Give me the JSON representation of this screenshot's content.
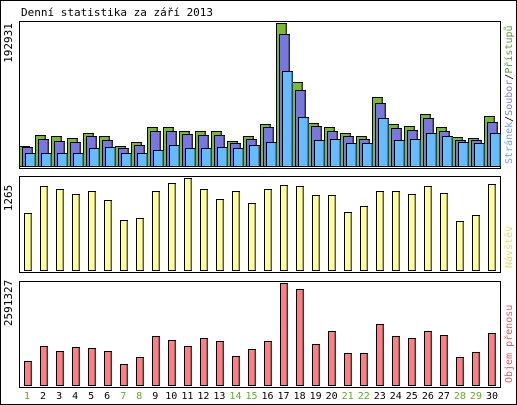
{
  "chart_data": {
    "type": "bar",
    "title": "Denní statistika za září 2013",
    "categories": [
      "1",
      "2",
      "3",
      "4",
      "5",
      "6",
      "7",
      "8",
      "9",
      "10",
      "11",
      "12",
      "13",
      "14",
      "15",
      "16",
      "17",
      "18",
      "19",
      "20",
      "21",
      "22",
      "23",
      "24",
      "25",
      "26",
      "27",
      "28",
      "29",
      "30"
    ],
    "weekend_days": [
      "1",
      "7",
      "8",
      "14",
      "15",
      "21",
      "22",
      "28",
      "29"
    ],
    "panels": [
      {
        "id": "hits",
        "y_tick_label": "192931",
        "y_tick_value": 192931,
        "ylim": [
          0,
          192931
        ],
        "legend": [
          {
            "text": "Stránek",
            "color": "#70a0f0"
          },
          {
            "text": "/",
            "color": "#000000"
          },
          {
            "text": "Soubor",
            "color": "#8080e0"
          },
          {
            "text": "/",
            "color": "#000000"
          },
          {
            "text": "Přístupů",
            "color": "#60a030"
          }
        ],
        "series": [
          {
            "name": "Přístupů",
            "color": "#77bb33",
            "values": [
              27000,
              42000,
              40000,
              38000,
              45000,
              40000,
              27000,
              32000,
              52000,
              53000,
              47000,
              47000,
              47000,
              34000,
              40000,
              57000,
              192931,
              114000,
              58000,
              52000,
              45000,
              40000,
              93000,
              56000,
              54000,
              70000,
              52000,
              39000,
              38000,
              67000
            ]
          },
          {
            "name": "Soubor",
            "color": "#7777dd",
            "values": [
              25000,
              37000,
              34000,
              33000,
              40000,
              35000,
              24000,
              29000,
              47000,
              47000,
              43000,
              42000,
              42000,
              31000,
              37000,
              53000,
              178000,
              103000,
              54000,
              47000,
              41000,
              36000,
              85000,
              51000,
              48000,
              65000,
              47000,
              35000,
              35000,
              60000
            ]
          },
          {
            "name": "Stránek",
            "color": "#66bbff",
            "values": [
              18000,
              18000,
              17000,
              18000,
              24000,
              25000,
              18000,
              18000,
              22000,
              28000,
              24000,
              24000,
              25000,
              24000,
              29000,
              32000,
              128000,
              66000,
              35000,
              36000,
              31000,
              31000,
              65000,
              35000,
              37000,
              44000,
              40000,
              32000,
              31000,
              44000
            ]
          }
        ]
      },
      {
        "id": "visits",
        "y_tick_label": "1265",
        "y_tick_value": 1265,
        "ylim": [
          0,
          1265
        ],
        "legend": [
          {
            "text": "Návštěv",
            "color": "#e0e060"
          }
        ],
        "series": [
          {
            "name": "Návštěv",
            "color": "#ffff99",
            "values": [
              790,
              1160,
              1120,
              1050,
              1080,
              960,
              690,
              720,
              1090,
              1190,
              1265,
              1110,
              970,
              1080,
              920,
              1110,
              1170,
              1150,
              1030,
              1030,
              800,
              880,
              1080,
              1080,
              1040,
              1160,
              1060,
              680,
              760,
              1180
            ]
          }
        ]
      },
      {
        "id": "traffic",
        "y_tick_label": "2591327",
        "y_tick_value": 2591327,
        "ylim": [
          0,
          2591327
        ],
        "legend": [
          {
            "text": "Objem přenosu",
            "color": "#e06060"
          }
        ],
        "series": [
          {
            "name": "Objem přenosu",
            "color": "#ff8080",
            "values": [
              600000,
              1000000,
              870000,
              960000,
              950000,
              860000,
              530000,
              720000,
              1240000,
              1150000,
              990000,
              1200000,
              1130000,
              730000,
              920000,
              1120000,
              2591327,
              2450000,
              1030000,
              1380000,
              810000,
              820000,
              1560000,
              1240000,
              1190000,
              1370000,
              1280000,
              720000,
              850000,
              1320000
            ]
          }
        ]
      }
    ]
  }
}
